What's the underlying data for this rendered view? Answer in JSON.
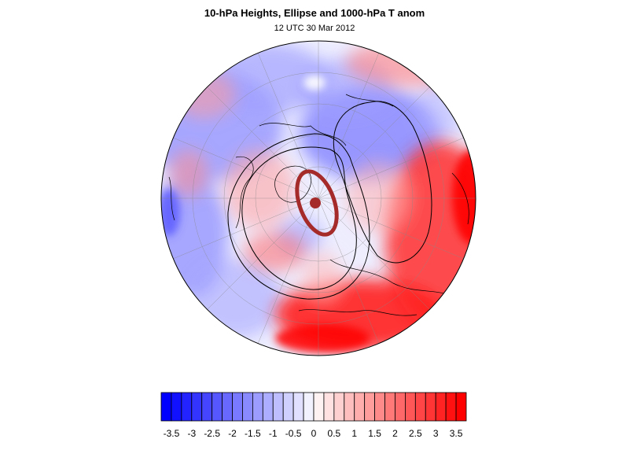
{
  "header": {
    "title": "10-hPa Heights, Ellipse and 1000-hPa T anom",
    "subtitle": "12 UTC 30 Mar 2012"
  },
  "colors": {
    "cold_max": "#0000ff",
    "neutral": "#ffffff",
    "warm_max": "#ff0000",
    "ellipse": "#a52a2a",
    "contour": "#000000"
  },
  "colorbar": {
    "levels": [
      -3.5,
      -3.25,
      -3,
      -2.75,
      -2.5,
      -2.25,
      -2,
      -1.75,
      -1.5,
      -1.25,
      -1,
      -0.75,
      -0.5,
      -0.25,
      0,
      0.25,
      0.5,
      0.75,
      1,
      1.25,
      1.5,
      1.75,
      2,
      2.25,
      2.5,
      2.75,
      3,
      3.25,
      3.5
    ],
    "labels": [
      "-3.5",
      "-3",
      "-2.5",
      "-2",
      "-1.5",
      "-1",
      "-0.5",
      "0",
      "0.5",
      "1",
      "1.5",
      "2",
      "2.5",
      "3",
      "3.5"
    ]
  }
}
